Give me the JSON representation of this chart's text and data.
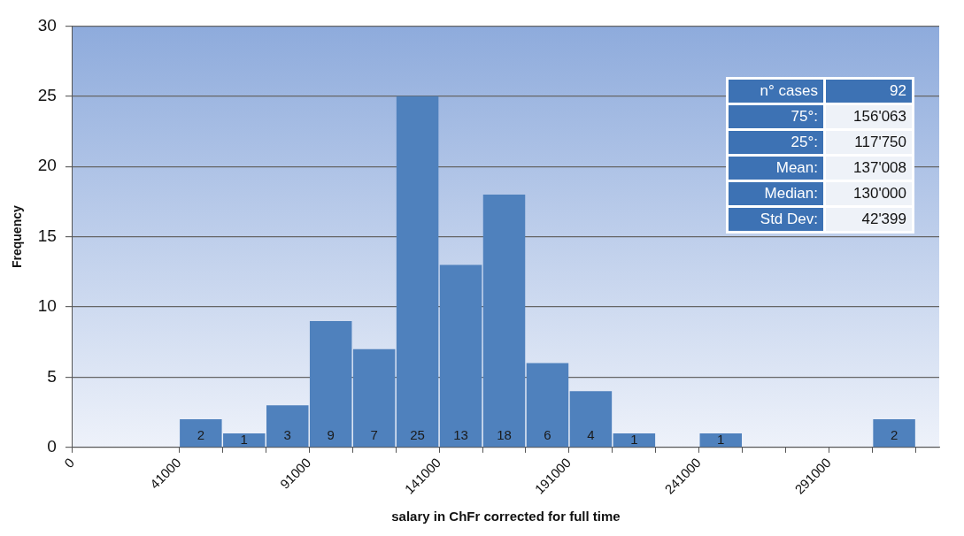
{
  "chart_data": {
    "type": "histogram",
    "xlabel": "salary in ChFr corrected for full time",
    "ylabel": "Frequency",
    "bins": [
      41000,
      57667,
      74333,
      91000,
      107667,
      124333,
      141000,
      157667,
      174333,
      191000,
      207667,
      224333,
      241000,
      257667,
      274333,
      291000,
      307667,
      324333
    ],
    "values": [
      2,
      1,
      3,
      9,
      7,
      25,
      13,
      18,
      6,
      4,
      1,
      0,
      1,
      0,
      0,
      0,
      2
    ],
    "value_labels": [
      "2",
      "1",
      "3",
      "9",
      "7",
      "25",
      "13",
      "18",
      "6",
      "4",
      "1",
      null,
      "1",
      null,
      null,
      null,
      "2"
    ],
    "color": "#4f81bd",
    "xlim": [
      0,
      333333
    ],
    "xticks": [
      0,
      41000,
      {
        "value": 57667,
        "label": null
      },
      {
        "value": 74333,
        "label": null
      },
      91000,
      {
        "value": 107667,
        "label": null
      },
      {
        "value": 124333,
        "label": null
      },
      141000,
      {
        "value": 157667,
        "label": null
      },
      {
        "value": 174333,
        "label": null
      },
      191000,
      {
        "value": 207667,
        "label": null
      },
      {
        "value": 224333,
        "label": null
      },
      241000,
      {
        "value": 257667,
        "label": null
      },
      {
        "value": 274333,
        "label": null
      },
      291000,
      {
        "value": 307667,
        "label": null
      },
      {
        "value": 324333,
        "label": null
      }
    ],
    "ylim": [
      0,
      30
    ],
    "yticks": [
      0,
      5,
      10,
      15,
      20,
      25,
      30
    ],
    "grid": "y",
    "legend": false,
    "annotations": [
      "n° cases",
      "92",
      "75°:",
      "156'063",
      "25°:",
      "117'750",
      "Mean:",
      "137'008",
      "Median:",
      "130'000",
      "Std Dev:",
      "42'399"
    ]
  }
}
